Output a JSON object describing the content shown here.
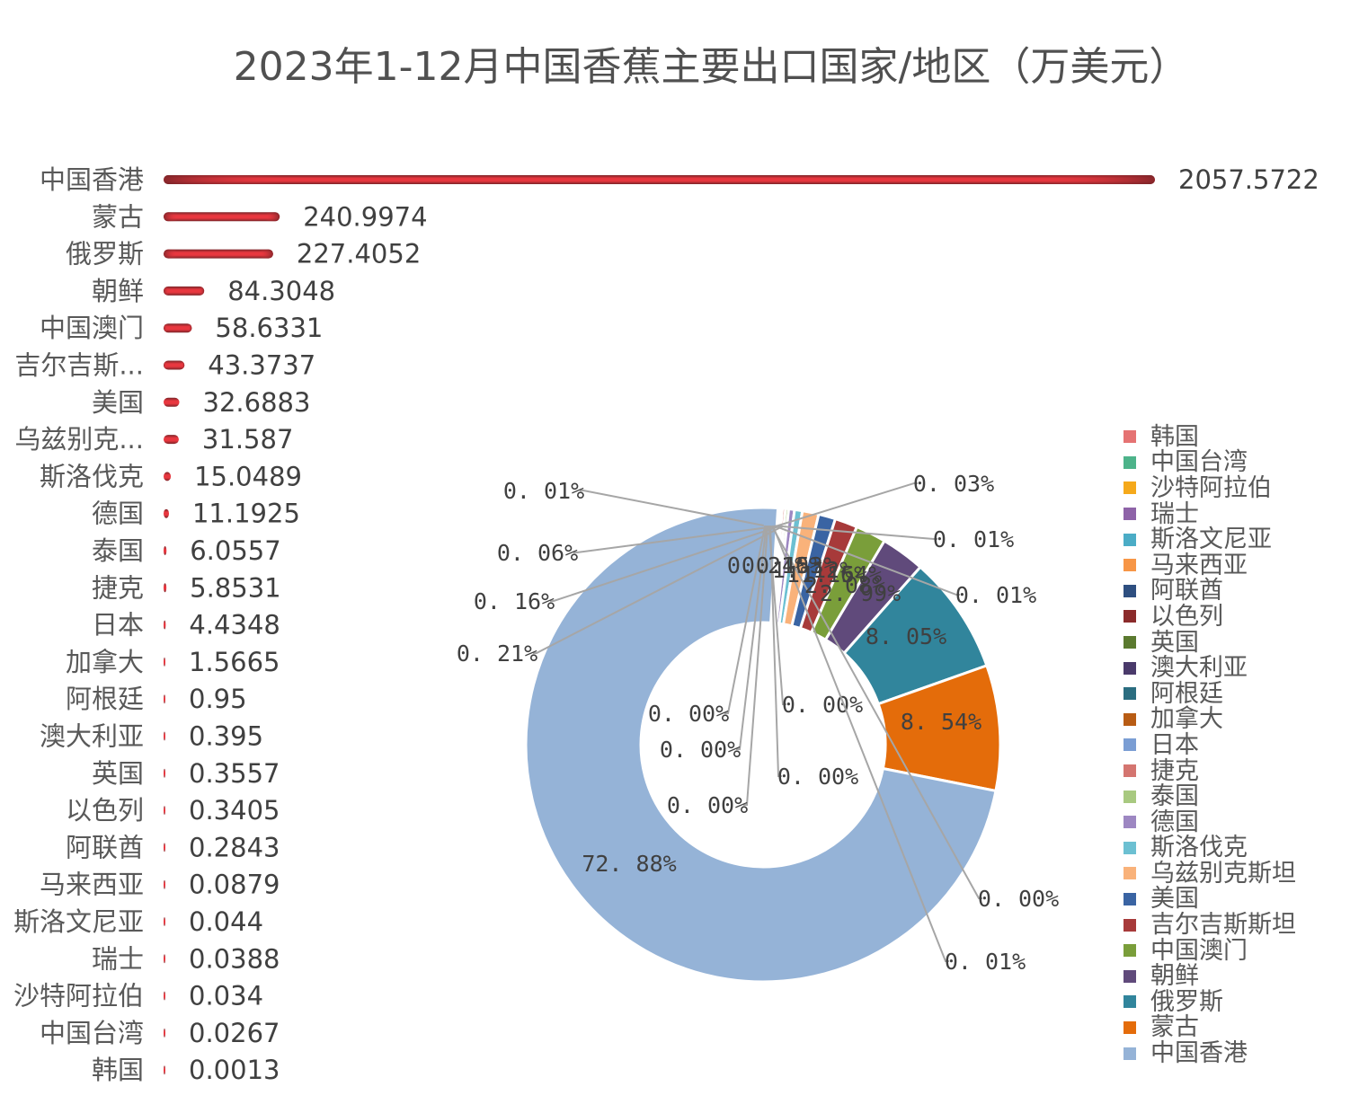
{
  "chart_data": [
    {
      "type": "bar",
      "orientation": "horizontal",
      "title": "2023年1-12月中国香蕉主要出口国家/地区（万美元）",
      "categories": [
        "中国香港",
        "蒙古",
        "俄罗斯",
        "朝鲜",
        "中国澳门",
        "吉尔吉斯...",
        "美国",
        "乌兹别克...",
        "斯洛伐克",
        "德国",
        "泰国",
        "捷克",
        "日本",
        "加拿大",
        "阿根廷",
        "澳大利亚",
        "英国",
        "以色列",
        "阿联酋",
        "马来西亚",
        "斯洛文尼亚",
        "瑞士",
        "沙特阿拉伯",
        "中国台湾",
        "韩国"
      ],
      "values": [
        2057.5722,
        240.9974,
        227.4052,
        84.3048,
        58.6331,
        43.3737,
        32.6883,
        31.587,
        15.0489,
        11.1925,
        6.0557,
        5.8531,
        4.4348,
        1.5665,
        0.95,
        0.395,
        0.3557,
        0.3405,
        0.2843,
        0.0879,
        0.044,
        0.0388,
        0.034,
        0.0267,
        0.0013
      ],
      "value_labels": [
        "2057.5722",
        "240.9974",
        "227.4052",
        "84.3048",
        "58.6331",
        "43.3737",
        "32.6883",
        "31.587",
        "15.0489",
        "11.1925",
        "6.0557",
        "5.8531",
        "4.4348",
        "1.5665",
        "0.95",
        "0.395",
        "0.3557",
        "0.3405",
        "0.2843",
        "0.0879",
        "0.044",
        "0.0388",
        "0.034",
        "0.0267",
        "0.0013"
      ],
      "bar_color": "#e8373f",
      "bar_edge_color": "#7a2428"
    },
    {
      "type": "pie",
      "donut": true,
      "start": "top",
      "direction": "clockwise",
      "labels": [
        "韩国",
        "中国台湾",
        "沙特阿拉伯",
        "瑞士",
        "斯洛文尼亚",
        "马来西亚",
        "阿联酋",
        "以色列",
        "英国",
        "澳大利亚",
        "阿根廷",
        "加拿大",
        "日本",
        "捷克",
        "泰国",
        "德国",
        "斯洛伐克",
        "乌兹别克斯坦",
        "美国",
        "吉尔吉斯斯坦",
        "中国澳门",
        "朝鲜",
        "俄罗斯",
        "蒙古",
        "中国香港"
      ],
      "values": [
        0.0013,
        0.0267,
        0.034,
        0.0388,
        0.044,
        0.0879,
        0.2843,
        0.3405,
        0.3557,
        0.395,
        0.95,
        1.5665,
        4.4348,
        5.8531,
        6.0557,
        11.1925,
        15.0489,
        31.587,
        32.6883,
        43.3737,
        58.6331,
        84.3048,
        227.4052,
        240.9974,
        2057.5722
      ],
      "colors": [
        "#e57373",
        "#4db38a",
        "#f5a91b",
        "#8e63a8",
        "#4bacc6",
        "#f79646",
        "#2e4f80",
        "#8b2b2b",
        "#5b7a2f",
        "#4a3a6b",
        "#2b6d80",
        "#b85c14",
        "#7b9ed4",
        "#d47570",
        "#a8c980",
        "#9d87c2",
        "#6cc0d2",
        "#f9b27a",
        "#3a64a3",
        "#a73a3a",
        "#7a9e3a",
        "#604a7b",
        "#31859c",
        "#e46c0a",
        "#95b3d7"
      ],
      "data_labels": [
        "0. 01%",
        "0. 00%",
        "0. 00%",
        "0. 00%",
        "0. 00%",
        "0. 00%",
        "0. 00%",
        "0. 01%",
        "0. 01%",
        "0. 01%",
        "0. 03%",
        "0. 06%",
        "0. 16%",
        "0. 21%",
        "0. 21%",
        "0. 40%",
        "0. 53%",
        "1. 12%",
        "1. 16%",
        "1. 54%",
        "2. 08%",
        "2. 99%",
        "8. 05%",
        "8. 54%",
        "72. 88%"
      ],
      "legend_position": "right"
    }
  ]
}
